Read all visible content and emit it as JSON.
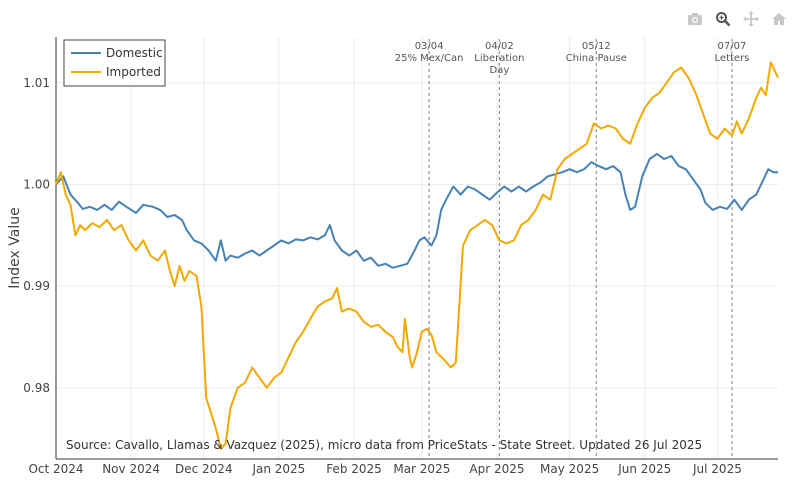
{
  "toolbar": [
    {
      "name": "camera-icon",
      "icon": "camera"
    },
    {
      "name": "zoom-icon",
      "icon": "magnifier"
    },
    {
      "name": "pan-icon",
      "icon": "move-arrows"
    },
    {
      "name": "home-icon",
      "icon": "house"
    }
  ],
  "chart_data": {
    "type": "line",
    "title": "",
    "xlabel": "",
    "ylabel": "Index Value",
    "xlim": [
      "2024-10-01",
      "2025-07-26"
    ],
    "ylim": [
      0.973,
      1.0145
    ],
    "y_ticks": [
      0.98,
      0.99,
      1.0,
      1.01
    ],
    "y_tick_labels": [
      "0.98",
      "0.99",
      "1.00",
      "1.01"
    ],
    "x_ticks": [
      "2024-10-01",
      "2024-11-01",
      "2024-12-01",
      "2025-01-01",
      "2025-02-01",
      "2025-03-01",
      "2025-04-01",
      "2025-05-01",
      "2025-06-01",
      "2025-07-01"
    ],
    "x_tick_labels": [
      "Oct 2024",
      "Nov 2024",
      "Dec 2024",
      "Jan 2025",
      "Feb 2025",
      "Mar 2025",
      "Apr 2025",
      "May 2025",
      "Jun 2025",
      "Jul 2025"
    ],
    "legend": {
      "position": "top-left",
      "entries": [
        "Domestic",
        "Imported"
      ]
    },
    "colors": {
      "Domestic": "#4682b4",
      "Imported": "#f2a900",
      "event_line": "#999999"
    },
    "source": "Source: Cavallo, Llamas & Vazquez (2025), micro data from PriceStats - State Street. Updated 26 Jul 2025",
    "events": [
      {
        "date": "2025-03-04",
        "lines": [
          "03/04",
          "25% Mex/Can"
        ]
      },
      {
        "date": "2025-04-02",
        "lines": [
          "04/02",
          "Liberation",
          "Day"
        ]
      },
      {
        "date": "2025-05-12",
        "lines": [
          "05/12",
          "China Pause"
        ]
      },
      {
        "date": "2025-07-07",
        "lines": [
          "07/07",
          "Letters"
        ]
      }
    ],
    "series": [
      {
        "name": "Domestic",
        "points": [
          [
            "2024-10-01",
            1.0
          ],
          [
            "2024-10-04",
            1.0008
          ],
          [
            "2024-10-07",
            0.999
          ],
          [
            "2024-10-10",
            0.9982
          ],
          [
            "2024-10-12",
            0.9976
          ],
          [
            "2024-10-15",
            0.9978
          ],
          [
            "2024-10-18",
            0.9975
          ],
          [
            "2024-10-21",
            0.998
          ],
          [
            "2024-10-24",
            0.9975
          ],
          [
            "2024-10-27",
            0.9983
          ],
          [
            "2024-10-30",
            0.9978
          ],
          [
            "2024-11-03",
            0.9972
          ],
          [
            "2024-11-06",
            0.998
          ],
          [
            "2024-11-10",
            0.9978
          ],
          [
            "2024-11-13",
            0.9975
          ],
          [
            "2024-11-16",
            0.9968
          ],
          [
            "2024-11-19",
            0.997
          ],
          [
            "2024-11-22",
            0.9965
          ],
          [
            "2024-11-24",
            0.9955
          ],
          [
            "2024-11-27",
            0.9945
          ],
          [
            "2024-11-30",
            0.9942
          ],
          [
            "2024-12-03",
            0.9935
          ],
          [
            "2024-12-06",
            0.9925
          ],
          [
            "2024-12-08",
            0.9945
          ],
          [
            "2024-12-10",
            0.9925
          ],
          [
            "2024-12-12",
            0.993
          ],
          [
            "2024-12-15",
            0.9928
          ],
          [
            "2024-12-18",
            0.9932
          ],
          [
            "2024-12-21",
            0.9935
          ],
          [
            "2024-12-24",
            0.993
          ],
          [
            "2024-12-27",
            0.9935
          ],
          [
            "2024-12-30",
            0.994
          ],
          [
            "2025-01-02",
            0.9945
          ],
          [
            "2025-01-05",
            0.9942
          ],
          [
            "2025-01-08",
            0.9946
          ],
          [
            "2025-01-11",
            0.9945
          ],
          [
            "2025-01-14",
            0.9948
          ],
          [
            "2025-01-17",
            0.9946
          ],
          [
            "2025-01-20",
            0.995
          ],
          [
            "2025-01-22",
            0.996
          ],
          [
            "2025-01-24",
            0.9945
          ],
          [
            "2025-01-27",
            0.9935
          ],
          [
            "2025-01-30",
            0.993
          ],
          [
            "2025-02-02",
            0.9935
          ],
          [
            "2025-02-05",
            0.9925
          ],
          [
            "2025-02-08",
            0.9928
          ],
          [
            "2025-02-11",
            0.992
          ],
          [
            "2025-02-14",
            0.9922
          ],
          [
            "2025-02-17",
            0.9918
          ],
          [
            "2025-02-20",
            0.992
          ],
          [
            "2025-02-23",
            0.9922
          ],
          [
            "2025-02-26",
            0.9935
          ],
          [
            "2025-02-28",
            0.9945
          ],
          [
            "2025-03-02",
            0.9948
          ],
          [
            "2025-03-05",
            0.994
          ],
          [
            "2025-03-07",
            0.995
          ],
          [
            "2025-03-09",
            0.9975
          ],
          [
            "2025-03-11",
            0.9985
          ],
          [
            "2025-03-14",
            0.9998
          ],
          [
            "2025-03-17",
            0.999
          ],
          [
            "2025-03-20",
            0.9998
          ],
          [
            "2025-03-23",
            0.9995
          ],
          [
            "2025-03-26",
            0.999
          ],
          [
            "2025-03-29",
            0.9985
          ],
          [
            "2025-04-01",
            0.9992
          ],
          [
            "2025-04-04",
            0.9998
          ],
          [
            "2025-04-07",
            0.9993
          ],
          [
            "2025-04-10",
            0.9998
          ],
          [
            "2025-04-13",
            0.9993
          ],
          [
            "2025-04-16",
            0.9998
          ],
          [
            "2025-04-19",
            1.0002
          ],
          [
            "2025-04-22",
            1.0008
          ],
          [
            "2025-04-25",
            1.001
          ],
          [
            "2025-04-28",
            1.0012
          ],
          [
            "2025-05-01",
            1.0015
          ],
          [
            "2025-05-04",
            1.0012
          ],
          [
            "2025-05-07",
            1.0015
          ],
          [
            "2025-05-10",
            1.0022
          ],
          [
            "2025-05-13",
            1.0018
          ],
          [
            "2025-05-16",
            1.0015
          ],
          [
            "2025-05-19",
            1.0018
          ],
          [
            "2025-05-22",
            1.0012
          ],
          [
            "2025-05-24",
            0.999
          ],
          [
            "2025-05-26",
            0.9975
          ],
          [
            "2025-05-28",
            0.9978
          ],
          [
            "2025-05-31",
            1.0008
          ],
          [
            "2025-06-03",
            1.0025
          ],
          [
            "2025-06-06",
            1.003
          ],
          [
            "2025-06-09",
            1.0025
          ],
          [
            "2025-06-12",
            1.0028
          ],
          [
            "2025-06-15",
            1.0018
          ],
          [
            "2025-06-18",
            1.0015
          ],
          [
            "2025-06-21",
            1.0005
          ],
          [
            "2025-06-24",
            0.9995
          ],
          [
            "2025-06-26",
            0.9982
          ],
          [
            "2025-06-29",
            0.9975
          ],
          [
            "2025-07-02",
            0.9978
          ],
          [
            "2025-07-05",
            0.9976
          ],
          [
            "2025-07-08",
            0.9985
          ],
          [
            "2025-07-11",
            0.9975
          ],
          [
            "2025-07-14",
            0.9985
          ],
          [
            "2025-07-17",
            0.999
          ],
          [
            "2025-07-20",
            1.0005
          ],
          [
            "2025-07-22",
            1.0015
          ],
          [
            "2025-07-24",
            1.0012
          ],
          [
            "2025-07-26",
            1.0012
          ]
        ]
      },
      {
        "name": "Imported",
        "points": [
          [
            "2024-10-01",
            1.0
          ],
          [
            "2024-10-03",
            1.0012
          ],
          [
            "2024-10-05",
            0.999
          ],
          [
            "2024-10-07",
            0.998
          ],
          [
            "2024-10-09",
            0.995
          ],
          [
            "2024-10-11",
            0.996
          ],
          [
            "2024-10-13",
            0.9955
          ],
          [
            "2024-10-16",
            0.9962
          ],
          [
            "2024-10-19",
            0.9958
          ],
          [
            "2024-10-22",
            0.9965
          ],
          [
            "2024-10-25",
            0.9955
          ],
          [
            "2024-10-28",
            0.996
          ],
          [
            "2024-10-31",
            0.9945
          ],
          [
            "2024-11-03",
            0.9935
          ],
          [
            "2024-11-06",
            0.9945
          ],
          [
            "2024-11-09",
            0.993
          ],
          [
            "2024-11-12",
            0.9925
          ],
          [
            "2024-11-15",
            0.9935
          ],
          [
            "2024-11-17",
            0.9915
          ],
          [
            "2024-11-19",
            0.99
          ],
          [
            "2024-11-21",
            0.992
          ],
          [
            "2024-11-23",
            0.9905
          ],
          [
            "2024-11-25",
            0.9915
          ],
          [
            "2024-11-28",
            0.991
          ],
          [
            "2024-11-30",
            0.988
          ],
          [
            "2024-12-02",
            0.979
          ],
          [
            "2024-12-04",
            0.9775
          ],
          [
            "2024-12-06",
            0.976
          ],
          [
            "2024-12-08",
            0.974
          ],
          [
            "2024-12-10",
            0.9745
          ],
          [
            "2024-12-12",
            0.978
          ],
          [
            "2024-12-15",
            0.98
          ],
          [
            "2024-12-18",
            0.9805
          ],
          [
            "2024-12-21",
            0.982
          ],
          [
            "2024-12-24",
            0.981
          ],
          [
            "2024-12-27",
            0.98
          ],
          [
            "2024-12-30",
            0.981
          ],
          [
            "2025-01-02",
            0.9815
          ],
          [
            "2025-01-05",
            0.983
          ],
          [
            "2025-01-08",
            0.9845
          ],
          [
            "2025-01-11",
            0.9855
          ],
          [
            "2025-01-14",
            0.9868
          ],
          [
            "2025-01-17",
            0.988
          ],
          [
            "2025-01-20",
            0.9885
          ],
          [
            "2025-01-23",
            0.9888
          ],
          [
            "2025-01-25",
            0.9898
          ],
          [
            "2025-01-27",
            0.9875
          ],
          [
            "2025-01-30",
            0.9878
          ],
          [
            "2025-02-02",
            0.9875
          ],
          [
            "2025-02-05",
            0.9865
          ],
          [
            "2025-02-08",
            0.986
          ],
          [
            "2025-02-11",
            0.9862
          ],
          [
            "2025-02-14",
            0.9855
          ],
          [
            "2025-02-17",
            0.985
          ],
          [
            "2025-02-19",
            0.984
          ],
          [
            "2025-02-21",
            0.9835
          ],
          [
            "2025-02-22",
            0.9868
          ],
          [
            "2025-02-24",
            0.983
          ],
          [
            "2025-02-25",
            0.982
          ],
          [
            "2025-02-27",
            0.9835
          ],
          [
            "2025-03-01",
            0.9855
          ],
          [
            "2025-03-03",
            0.9858
          ],
          [
            "2025-03-05",
            0.9852
          ],
          [
            "2025-03-07",
            0.9835
          ],
          [
            "2025-03-10",
            0.9828
          ],
          [
            "2025-03-13",
            0.982
          ],
          [
            "2025-03-15",
            0.9825
          ],
          [
            "2025-03-18",
            0.994
          ],
          [
            "2025-03-21",
            0.9955
          ],
          [
            "2025-03-24",
            0.996
          ],
          [
            "2025-03-27",
            0.9965
          ],
          [
            "2025-03-30",
            0.996
          ],
          [
            "2025-04-02",
            0.9945
          ],
          [
            "2025-04-05",
            0.9942
          ],
          [
            "2025-04-08",
            0.9945
          ],
          [
            "2025-04-11",
            0.996
          ],
          [
            "2025-04-14",
            0.9965
          ],
          [
            "2025-04-17",
            0.9975
          ],
          [
            "2025-04-20",
            0.999
          ],
          [
            "2025-04-23",
            0.9985
          ],
          [
            "2025-04-26",
            1.0015
          ],
          [
            "2025-04-29",
            1.0025
          ],
          [
            "2025-05-02",
            1.003
          ],
          [
            "2025-05-05",
            1.0035
          ],
          [
            "2025-05-08",
            1.004
          ],
          [
            "2025-05-11",
            1.006
          ],
          [
            "2025-05-14",
            1.0055
          ],
          [
            "2025-05-17",
            1.0058
          ],
          [
            "2025-05-20",
            1.0055
          ],
          [
            "2025-05-23",
            1.0045
          ],
          [
            "2025-05-26",
            1.004
          ],
          [
            "2025-05-29",
            1.006
          ],
          [
            "2025-06-01",
            1.0075
          ],
          [
            "2025-06-04",
            1.0085
          ],
          [
            "2025-06-07",
            1.009
          ],
          [
            "2025-06-10",
            1.01
          ],
          [
            "2025-06-13",
            1.011
          ],
          [
            "2025-06-16",
            1.0115
          ],
          [
            "2025-06-19",
            1.0105
          ],
          [
            "2025-06-22",
            1.009
          ],
          [
            "2025-06-25",
            1.007
          ],
          [
            "2025-06-28",
            1.005
          ],
          [
            "2025-07-01",
            1.0045
          ],
          [
            "2025-07-04",
            1.0055
          ],
          [
            "2025-07-07",
            1.0048
          ],
          [
            "2025-07-09",
            1.0062
          ],
          [
            "2025-07-11",
            1.005
          ],
          [
            "2025-07-14",
            1.0065
          ],
          [
            "2025-07-17",
            1.0085
          ],
          [
            "2025-07-19",
            1.0095
          ],
          [
            "2025-07-21",
            1.0088
          ],
          [
            "2025-07-23",
            1.012
          ],
          [
            "2025-07-25",
            1.011
          ],
          [
            "2025-07-26",
            1.0105
          ]
        ]
      }
    ]
  }
}
